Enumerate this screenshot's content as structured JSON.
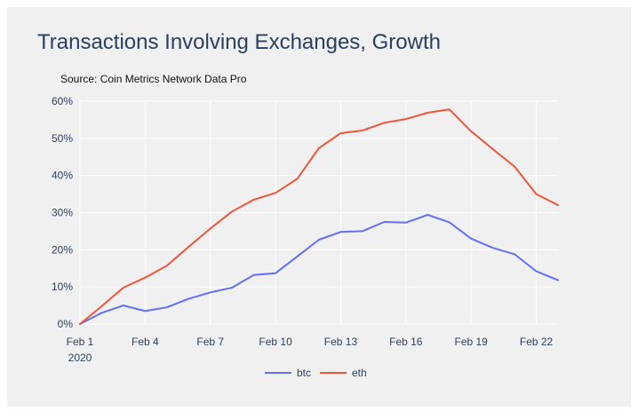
{
  "title": "Transactions Involving Exchanges, Growth",
  "subtitle": "Source: Coin Metrics Network Data Pro",
  "colors": {
    "btc": "#636efa",
    "eth": "#ef553b",
    "grid": "#ffffff",
    "background": "#f0f0f0"
  },
  "chart_data": {
    "type": "line",
    "title": "Transactions Involving Exchanges, Growth",
    "subtitle": "Source: Coin Metrics Network Data Pro",
    "xlabel": "",
    "ylabel": "",
    "x": [
      "2020-02-01",
      "2020-02-02",
      "2020-02-03",
      "2020-02-04",
      "2020-02-05",
      "2020-02-06",
      "2020-02-07",
      "2020-02-08",
      "2020-02-09",
      "2020-02-10",
      "2020-02-11",
      "2020-02-12",
      "2020-02-13",
      "2020-02-14",
      "2020-02-15",
      "2020-02-16",
      "2020-02-17",
      "2020-02-18",
      "2020-02-19",
      "2020-02-20",
      "2020-02-21",
      "2020-02-22",
      "2020-02-23"
    ],
    "x_tick_labels": [
      {
        "x": "2020-02-01",
        "label": "Feb 1",
        "sublabel": "2020"
      },
      {
        "x": "2020-02-04",
        "label": "Feb 4",
        "sublabel": ""
      },
      {
        "x": "2020-02-07",
        "label": "Feb 7",
        "sublabel": ""
      },
      {
        "x": "2020-02-10",
        "label": "Feb 10",
        "sublabel": ""
      },
      {
        "x": "2020-02-13",
        "label": "Feb 13",
        "sublabel": ""
      },
      {
        "x": "2020-02-16",
        "label": "Feb 16",
        "sublabel": ""
      },
      {
        "x": "2020-02-19",
        "label": "Feb 19",
        "sublabel": ""
      },
      {
        "x": "2020-02-22",
        "label": "Feb 22",
        "sublabel": ""
      }
    ],
    "ylim": [
      0,
      0.6
    ],
    "y_ticks": [
      {
        "value": 0,
        "label": "0%"
      },
      {
        "value": 0.1,
        "label": "10%"
      },
      {
        "value": 0.2,
        "label": "20%"
      },
      {
        "value": 0.3,
        "label": "30%"
      },
      {
        "value": 0.4,
        "label": "40%"
      },
      {
        "value": 0.5,
        "label": "50%"
      },
      {
        "value": 0.6,
        "label": "60%"
      }
    ],
    "grid": true,
    "legend_position": "bottom-center",
    "series": [
      {
        "name": "btc",
        "color": "#636efa",
        "values": [
          0.0,
          0.03,
          0.05,
          0.035,
          0.045,
          0.068,
          0.085,
          0.098,
          0.132,
          0.137,
          0.182,
          0.227,
          0.248,
          0.25,
          0.275,
          0.273,
          0.294,
          0.274,
          0.23,
          0.205,
          0.188,
          0.142,
          0.118
        ]
      },
      {
        "name": "eth",
        "color": "#ef553b",
        "values": [
          0.0,
          0.048,
          0.098,
          0.125,
          0.157,
          0.208,
          0.257,
          0.303,
          0.335,
          0.353,
          0.391,
          0.474,
          0.514,
          0.521,
          0.542,
          0.552,
          0.569,
          0.578,
          0.519,
          0.471,
          0.424,
          0.35,
          0.32
        ]
      }
    ]
  }
}
